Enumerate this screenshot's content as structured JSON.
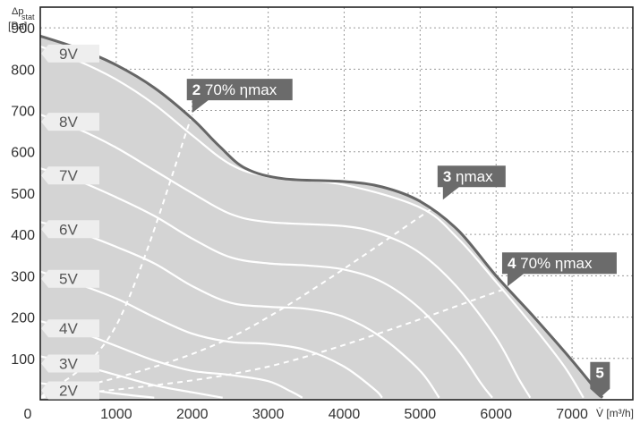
{
  "chart_data": {
    "type": "line",
    "xlabel": "V̇ [m³/h]",
    "ylabel_top": "Δp",
    "ylabel_sub": "stat",
    "ylabel_unit": "[Pa]",
    "xlim": [
      0,
      7800
    ],
    "ylim": [
      0,
      950
    ],
    "x_ticks": [
      "0",
      "1000",
      "2000",
      "3000",
      "4000",
      "5000",
      "6000",
      "7000"
    ],
    "x_tick_values": [
      0,
      1000,
      2000,
      3000,
      4000,
      5000,
      6000,
      7000
    ],
    "y_ticks": [
      "100",
      "200",
      "300",
      "400",
      "500",
      "600",
      "700",
      "800",
      "900"
    ],
    "y_tick_values": [
      100,
      200,
      300,
      400,
      500,
      600,
      700,
      800,
      900
    ],
    "grid": true,
    "fill_color": "#d4d4d4",
    "envelope_color": "#666666",
    "envelope": [
      [
        0,
        880
      ],
      [
        500,
        850
      ],
      [
        1000,
        810
      ],
      [
        1500,
        755
      ],
      [
        2000,
        680
      ],
      [
        2350,
        615
      ],
      [
        2700,
        560
      ],
      [
        3200,
        535
      ],
      [
        4000,
        528
      ],
      [
        4500,
        515
      ],
      [
        5000,
        480
      ],
      [
        5500,
        410
      ],
      [
        6000,
        300
      ],
      [
        6500,
        200
      ],
      [
        7000,
        95
      ],
      [
        7400,
        5
      ]
    ],
    "series": [
      {
        "name": "9V",
        "points": [
          [
            0,
            855
          ],
          [
            500,
            820
          ],
          [
            1000,
            775
          ],
          [
            1500,
            715
          ],
          [
            2000,
            640
          ],
          [
            2500,
            570
          ],
          [
            3000,
            540
          ],
          [
            4000,
            520
          ],
          [
            5000,
            465
          ],
          [
            5500,
            390
          ],
          [
            6000,
            285
          ],
          [
            6500,
            175
          ],
          [
            6900,
            80
          ],
          [
            7150,
            5
          ]
        ]
      },
      {
        "name": "8V",
        "points": [
          [
            0,
            690
          ],
          [
            500,
            655
          ],
          [
            1000,
            610
          ],
          [
            1500,
            555
          ],
          [
            2000,
            500
          ],
          [
            2500,
            450
          ],
          [
            3000,
            430
          ],
          [
            4000,
            420
          ],
          [
            4500,
            400
          ],
          [
            5000,
            355
          ],
          [
            5500,
            270
          ],
          [
            6000,
            150
          ],
          [
            6300,
            50
          ],
          [
            6450,
            5
          ]
        ]
      },
      {
        "name": "7V",
        "points": [
          [
            0,
            560
          ],
          [
            500,
            530
          ],
          [
            1000,
            490
          ],
          [
            1500,
            445
          ],
          [
            2000,
            390
          ],
          [
            2500,
            345
          ],
          [
            3000,
            330
          ],
          [
            3500,
            325
          ],
          [
            4000,
            315
          ],
          [
            4500,
            285
          ],
          [
            5000,
            220
          ],
          [
            5500,
            120
          ],
          [
            5800,
            40
          ],
          [
            5950,
            5
          ]
        ]
      },
      {
        "name": "6V",
        "points": [
          [
            0,
            430
          ],
          [
            500,
            405
          ],
          [
            1000,
            370
          ],
          [
            1500,
            330
          ],
          [
            2000,
            275
          ],
          [
            2500,
            235
          ],
          [
            3000,
            225
          ],
          [
            3500,
            220
          ],
          [
            4000,
            200
          ],
          [
            4500,
            150
          ],
          [
            5000,
            70
          ],
          [
            5250,
            5
          ]
        ]
      },
      {
        "name": "5V",
        "points": [
          [
            0,
            310
          ],
          [
            500,
            280
          ],
          [
            1000,
            245
          ],
          [
            1500,
            200
          ],
          [
            2000,
            160
          ],
          [
            2500,
            140
          ],
          [
            3000,
            135
          ],
          [
            3500,
            120
          ],
          [
            4000,
            80
          ],
          [
            4400,
            25
          ],
          [
            4500,
            5
          ]
        ]
      },
      {
        "name": "4V",
        "points": [
          [
            0,
            190
          ],
          [
            500,
            165
          ],
          [
            1000,
            130
          ],
          [
            1500,
            95
          ],
          [
            2000,
            70
          ],
          [
            2500,
            60
          ],
          [
            3000,
            45
          ],
          [
            3300,
            20
          ],
          [
            3450,
            5
          ]
        ]
      },
      {
        "name": "3V",
        "points": [
          [
            0,
            105
          ],
          [
            500,
            85
          ],
          [
            1000,
            60
          ],
          [
            1500,
            35
          ],
          [
            2000,
            18
          ],
          [
            2400,
            5
          ]
        ]
      },
      {
        "name": "2V",
        "points": [
          [
            0,
            40
          ],
          [
            500,
            28
          ],
          [
            1000,
            15
          ],
          [
            1500,
            5
          ]
        ]
      }
    ],
    "efficiency_lines": [
      {
        "id": "2",
        "points": [
          [
            0,
            5
          ],
          [
            1000,
            180
          ],
          [
            2000,
            690
          ]
        ]
      },
      {
        "id": "3",
        "points": [
          [
            0,
            5
          ],
          [
            2500,
            150
          ],
          [
            5300,
            480
          ]
        ]
      },
      {
        "id": "4",
        "points": [
          [
            0,
            5
          ],
          [
            3000,
            80
          ],
          [
            6150,
            270
          ]
        ]
      }
    ],
    "callouts": [
      {
        "num": "2",
        "text": "70% ηmax"
      },
      {
        "num": "3",
        "text": "ηmax"
      },
      {
        "num": "4",
        "text": "70% ηmax"
      },
      {
        "num": "5",
        "text": ""
      }
    ]
  }
}
